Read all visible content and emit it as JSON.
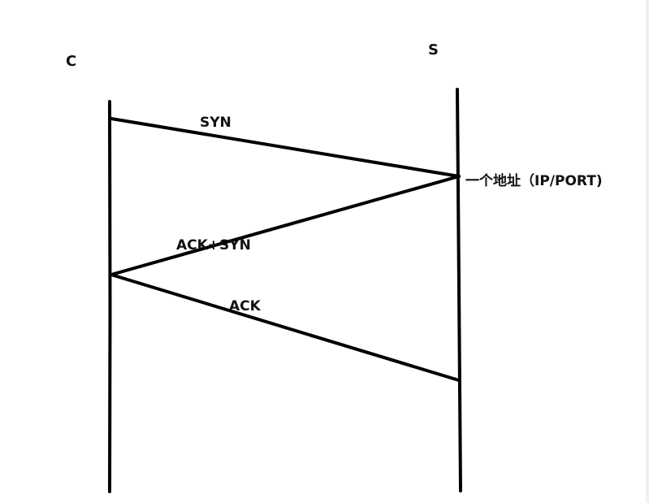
{
  "participants": {
    "client_label": "C",
    "server_label": "S"
  },
  "messages": [
    {
      "label": "SYN",
      "from": "C",
      "to": "S"
    },
    {
      "label": "ACK+SYN",
      "from": "S",
      "to": "C"
    },
    {
      "label": "ACK",
      "from": "C",
      "to": "S"
    }
  ],
  "annotations": {
    "server_address": "一个地址（IP/PORT)"
  },
  "colors": {
    "line": "#000000",
    "text": "#111111",
    "background": "#ffffff"
  }
}
